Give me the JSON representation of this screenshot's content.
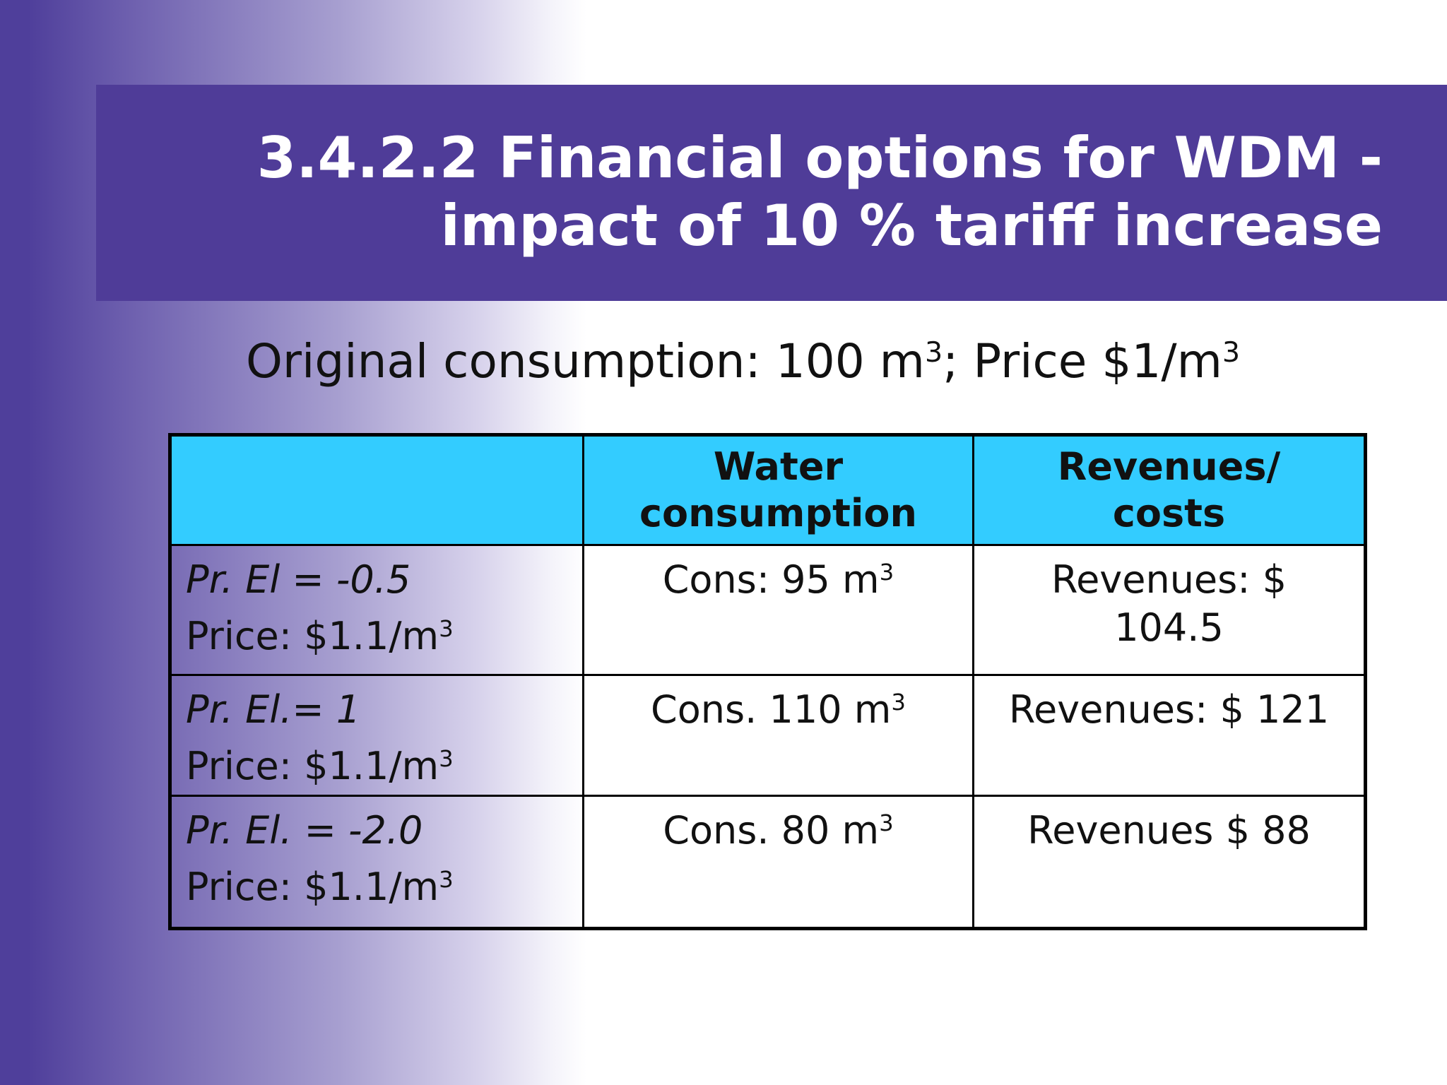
{
  "title": {
    "line1": "3.4.2.2 Financial options for WDM -",
    "line2": "impact of 10 % tariff increase"
  },
  "subtitle": {
    "part1": "Original consumption: 100 m",
    "sup1": "3",
    "part2": "; Price $1/m",
    "sup2": "3"
  },
  "table": {
    "headers": {
      "col1": "",
      "col2_line1": "Water",
      "col2_line2": "consumption",
      "col3_line1": "Revenues/",
      "col3_line2": "costs"
    },
    "rows": [
      {
        "elasticity": "Pr. El = -0.5",
        "price": "Price: $1.1/m",
        "price_sup": "3",
        "consumption": "Cons: 95 m",
        "consumption_sup": "3",
        "revenue_line1": "Revenues: $",
        "revenue_line2": "104.5"
      },
      {
        "elasticity": "Pr. El.= 1",
        "price": "Price: $1.1/m",
        "price_sup": "3",
        "consumption": "Cons. 110 m",
        "consumption_sup": "3",
        "revenue_line1": "Revenues: $ 121",
        "revenue_line2": ""
      },
      {
        "elasticity": "Pr. El. = -2.0",
        "price": "Price: $1.1/m",
        "price_sup": "3",
        "consumption": "Cons. 80 m",
        "consumption_sup": "3",
        "revenue_line1": "Revenues $ 88",
        "revenue_line2": ""
      }
    ]
  },
  "colors": {
    "title_band": "#4f3c98",
    "header_fill": "#33ccff",
    "left_gradient": "#4f3f9b"
  }
}
